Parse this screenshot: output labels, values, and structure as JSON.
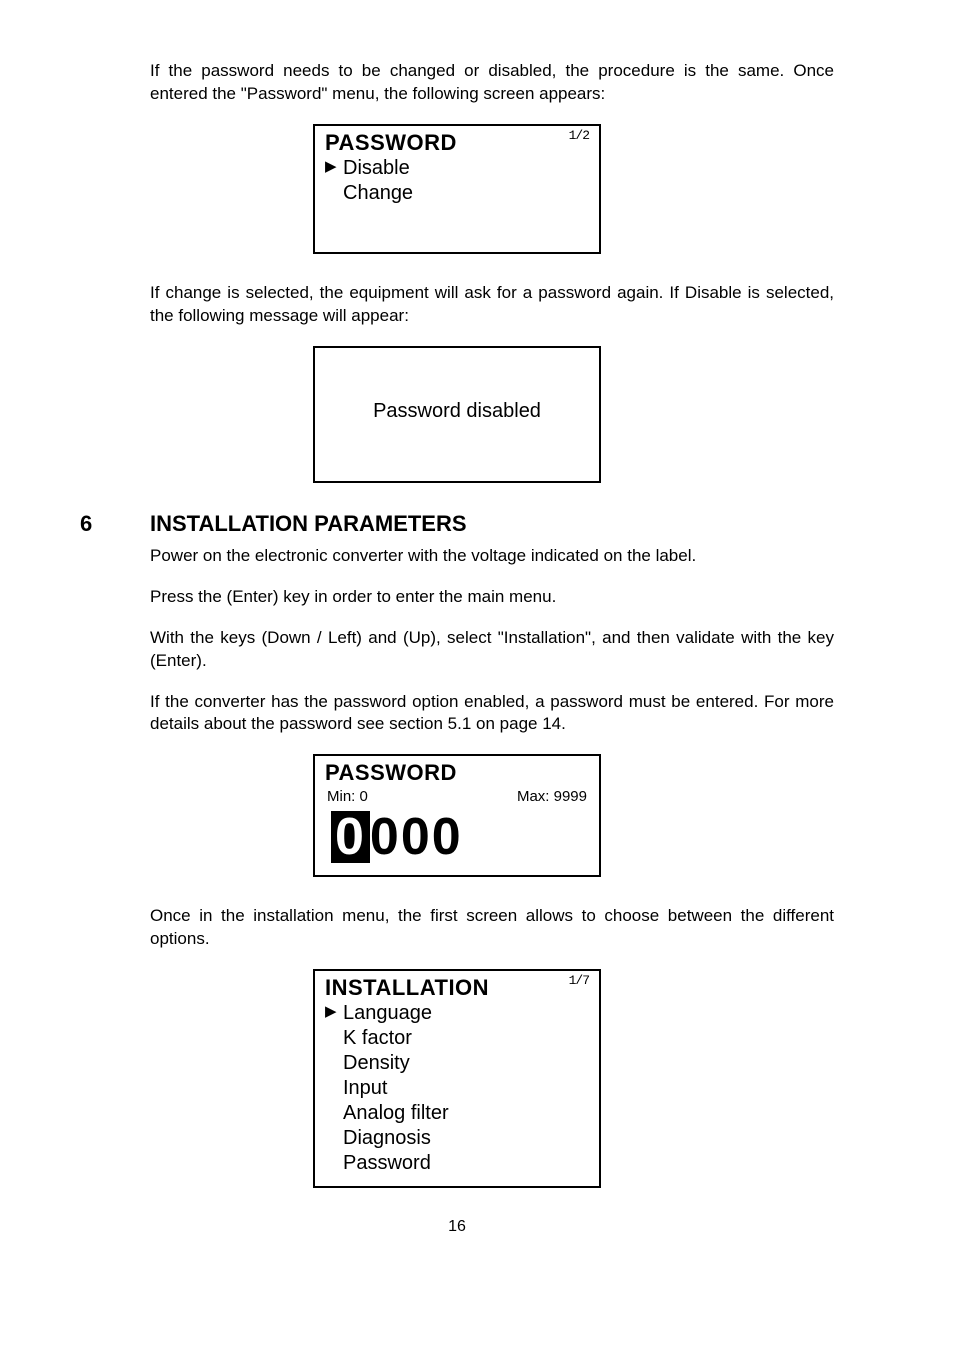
{
  "paragraphs": {
    "p1": "If the password needs to be changed or disabled, the procedure is the same. Once entered the \"Password\" menu, the following screen appears:",
    "p2": "If change is selected, the equipment will ask for a password again. If Disable is selected, the following message will appear:",
    "p3": "Power on the electronic converter with the voltage indicated on the label.",
    "p4": "Press the (Enter) key in order to enter the main menu.",
    "p5": "With the keys (Down / Left) and (Up), select \"Installation\", and then validate with the key (Enter).",
    "p6": "If the converter has the password option enabled, a password must be entered. For more details about the password see section 5.1 on page 14.",
    "p7": "Once in the installation menu, the first screen allows to choose between the different options."
  },
  "section": {
    "number": "6",
    "title": "INSTALLATION PARAMETERS"
  },
  "lcd1": {
    "title": "PASSWORD",
    "counter": "1/2",
    "items": [
      "Disable",
      "Change"
    ],
    "selected_index": 0
  },
  "lcd2": {
    "message": "Password disabled"
  },
  "lcd3": {
    "title": "PASSWORD",
    "min_label": "Min: 0",
    "max_label": "Max: 9999",
    "digits": [
      "0",
      "0",
      "0",
      "0"
    ],
    "highlighted_index": 0
  },
  "lcd4": {
    "title": "INSTALLATION",
    "counter": "1/7",
    "items": [
      "Language",
      "K factor",
      "Density",
      "Input",
      "Analog filter",
      "Diagnosis",
      "Password"
    ],
    "selected_index": 0
  },
  "page_number": "16",
  "colors": {
    "text": "#000000",
    "background": "#ffffff",
    "border": "#000000"
  },
  "fonts": {
    "body_size_pt": 13,
    "section_title_pt": 17,
    "lcd_title_pt": 17,
    "lcd_item_pt": 15
  }
}
